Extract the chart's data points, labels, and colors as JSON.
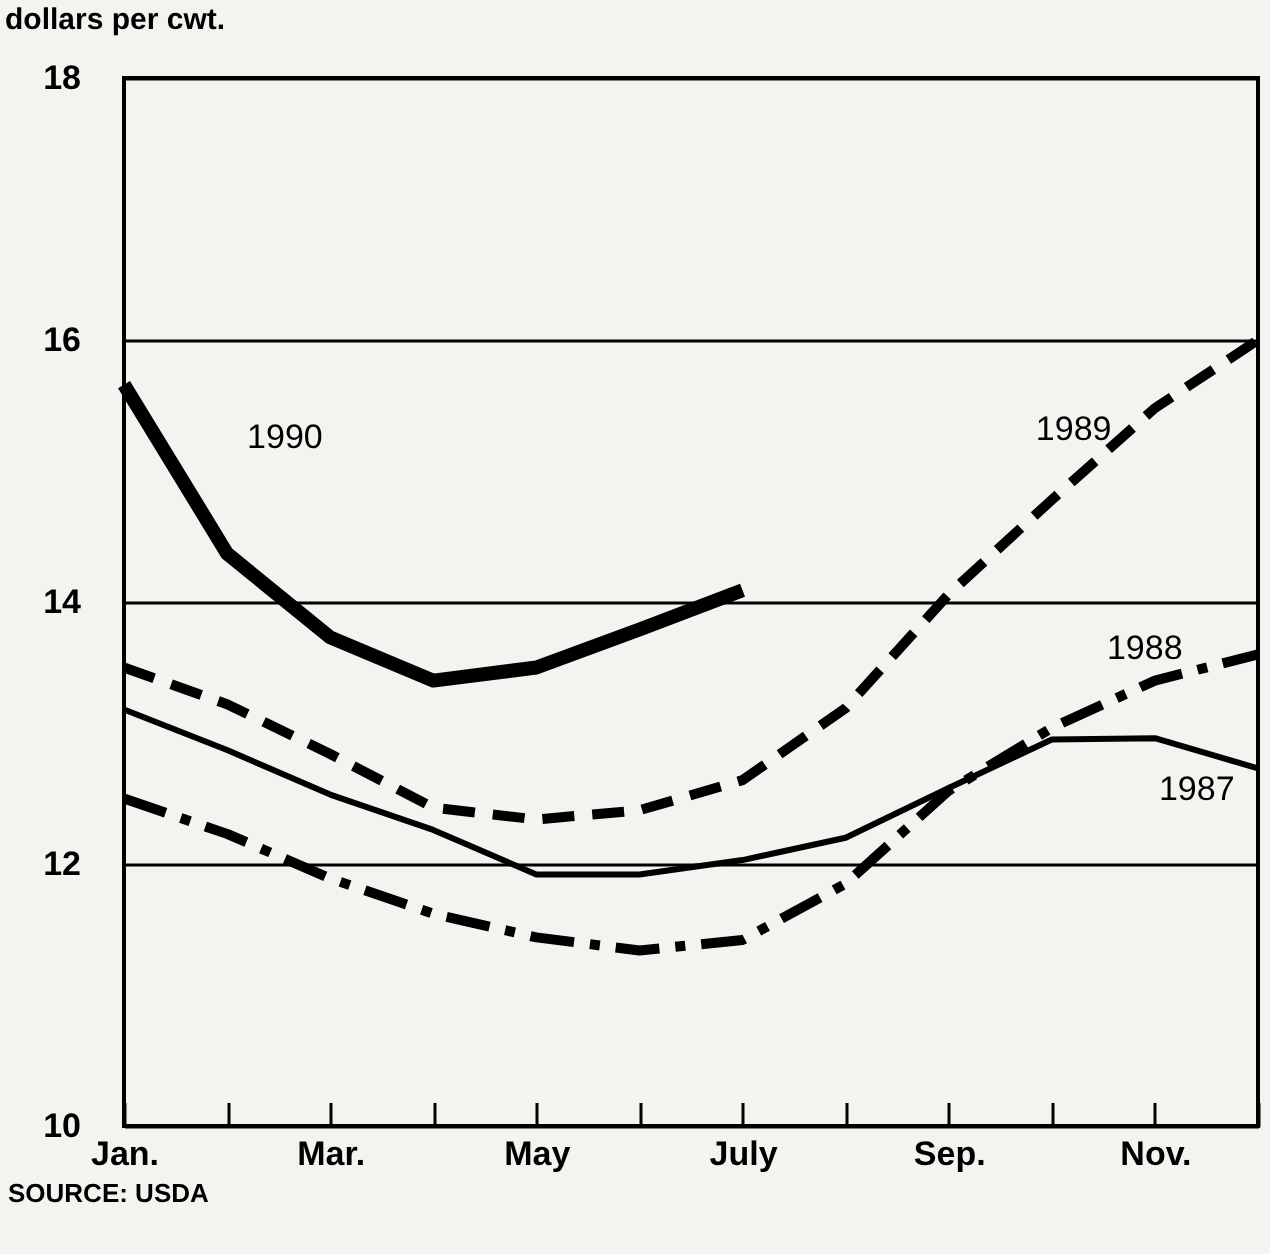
{
  "chart_data": {
    "type": "line",
    "ylabel": "dollars per cwt.",
    "categories": [
      "Jan.",
      null,
      "Mar.",
      null,
      "May",
      null,
      "July",
      null,
      "Sep.",
      null,
      "Nov.",
      null
    ],
    "series": [
      {
        "name": "1990",
        "color": "#000000",
        "line_style": "solid",
        "values": [
          15.66,
          14.37,
          13.73,
          13.4,
          13.5,
          13.79,
          14.09,
          null,
          null,
          null,
          null,
          null
        ]
      },
      {
        "name": "1989",
        "color": "#000000",
        "line_style": "dashed",
        "values": [
          13.5,
          13.22,
          12.84,
          12.43,
          12.34,
          12.41,
          12.64,
          13.19,
          14.06,
          14.78,
          15.48,
          16.0
        ]
      },
      {
        "name": "1988",
        "color": "#000000",
        "line_style": "dashdot",
        "values": [
          12.5,
          12.23,
          11.89,
          11.62,
          11.44,
          11.34,
          11.42,
          11.85,
          12.56,
          13.04,
          13.4,
          13.6
        ]
      },
      {
        "name": "1987",
        "color": "#000000",
        "line_style": "solid",
        "values": [
          13.18,
          12.87,
          12.53,
          12.26,
          11.92,
          11.92,
          12.03,
          12.2,
          12.58,
          12.95,
          12.96,
          12.73
        ]
      }
    ],
    "ylim": [
      10,
      18
    ],
    "yticks": [
      10,
      12,
      14,
      16,
      18
    ],
    "grid": "y",
    "annotations": [
      "SOURCE: USDA"
    ]
  }
}
